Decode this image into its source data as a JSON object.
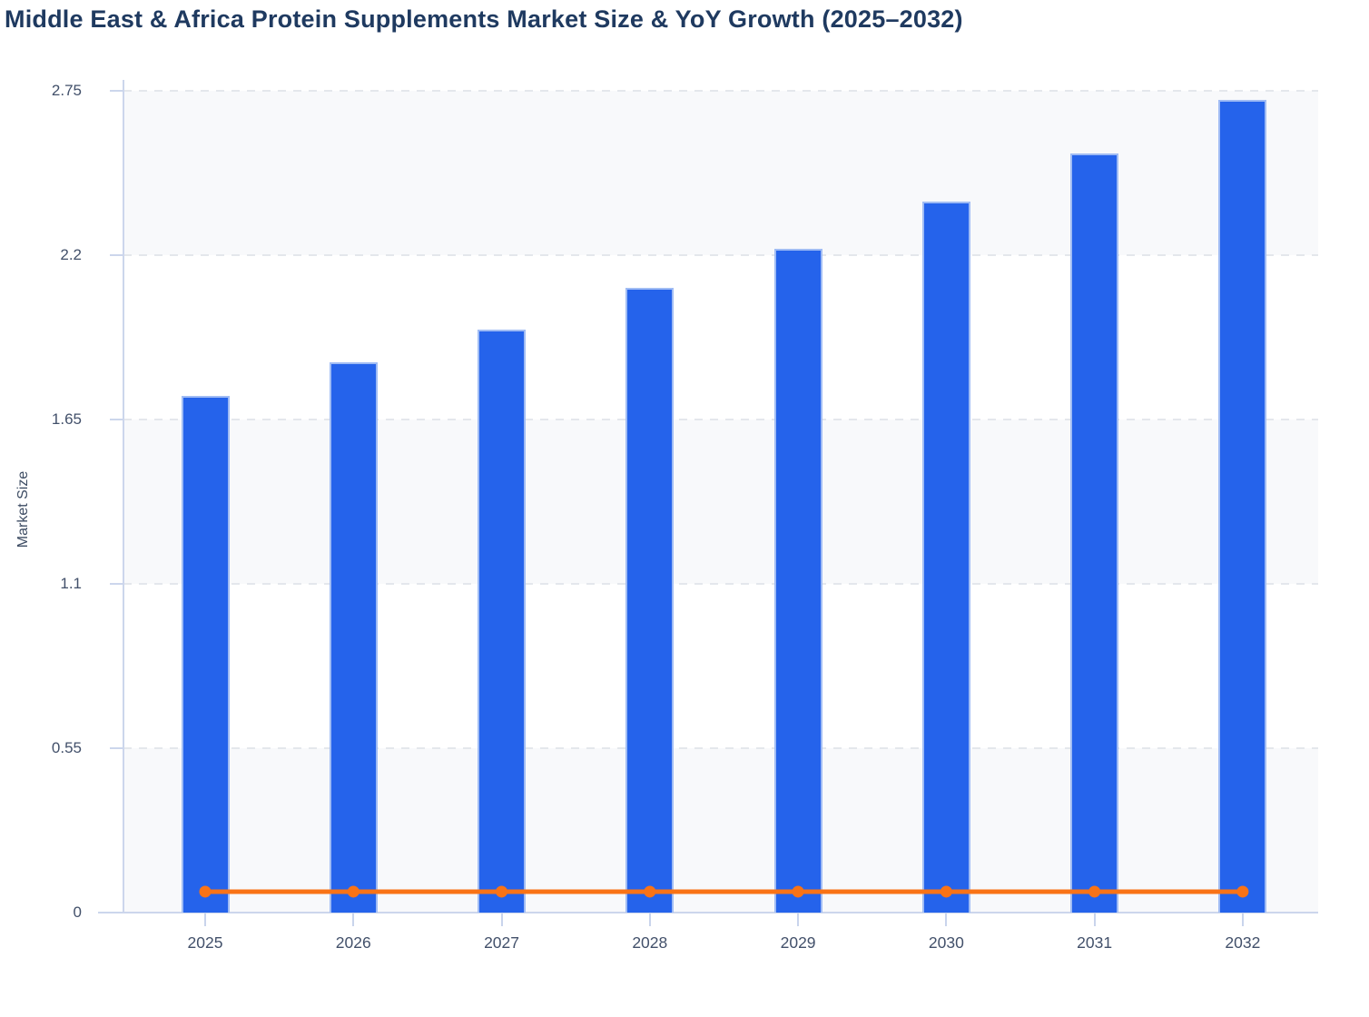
{
  "title": "Middle East & Africa Protein Supplements Market Size & YoY Growth (2025–2032)",
  "chart_data": {
    "type": "bar",
    "subtype": "combo-bar-line",
    "title": "Middle East & Africa Protein Supplements Market Size & YoY Growth (2025–2032)",
    "categories": [
      "2025",
      "2026",
      "2027",
      "2028",
      "2029",
      "2030",
      "2031",
      "2032"
    ],
    "series": [
      {
        "name": "Market Size",
        "type": "bar",
        "color": "#2563eb",
        "values": [
          1.73,
          1.84,
          1.95,
          2.09,
          2.22,
          2.38,
          2.54,
          2.72
        ]
      },
      {
        "name": "YoY Growth",
        "type": "line",
        "color": "#f97316",
        "values": [
          0.07,
          0.07,
          0.07,
          0.07,
          0.07,
          0.07,
          0.07,
          0.07
        ]
      }
    ],
    "xlabel": "",
    "ylabel": "Market Size",
    "ylim": [
      0,
      2.75
    ],
    "y_ticks": [
      "0",
      "0.55",
      "1.1",
      "1.65",
      "2.2",
      "2.75"
    ],
    "grid": "horizontal dashed",
    "plot_bands": "alternating horizontal stripes",
    "legend_position": "none"
  },
  "colors": {
    "bar_fill": "#2563eb",
    "bar_border": "#a7c1f4",
    "line": "#f97316",
    "band_gray": "#f8f9fb",
    "band_white": "#ffffff",
    "gridline": "#e4e7ec",
    "axis_line": "#ccd6ec",
    "tick_text": "#42506a",
    "title_text": "#1f3a60"
  }
}
